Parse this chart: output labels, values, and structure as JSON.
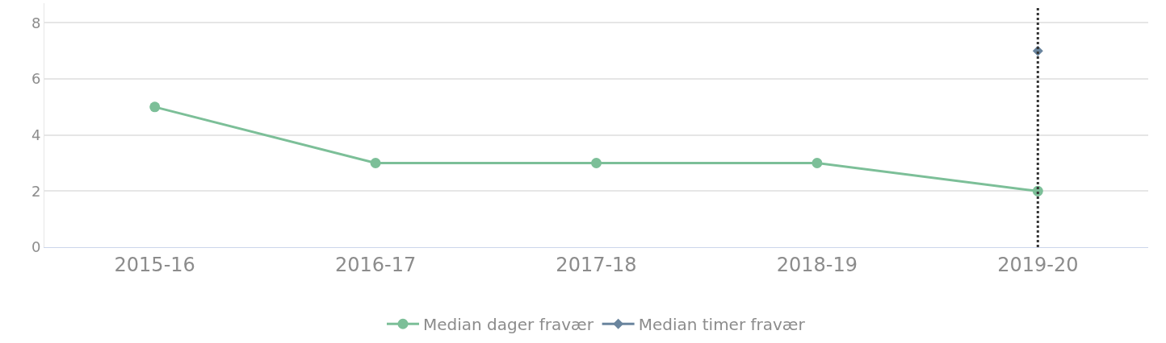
{
  "chart_data": {
    "type": "line",
    "categories": [
      "2015-16",
      "2016-17",
      "2017-18",
      "2018-19",
      "2019-20"
    ],
    "series": [
      {
        "name": "Median dager fravær",
        "color": "#7cbf98",
        "marker": "circle",
        "values": [
          5,
          3,
          3,
          3,
          2
        ]
      },
      {
        "name": "Median timer fravær",
        "color": "#6a859e",
        "marker": "diamond",
        "values": [
          null,
          null,
          null,
          null,
          7
        ]
      }
    ],
    "ylim": [
      0,
      8.7
    ],
    "yticks": [
      0,
      2,
      4,
      6,
      8
    ],
    "grid": "y",
    "legend": "bottom",
    "ref_lines": [
      {
        "axis": "x",
        "value": "2019-20",
        "color": "#333333",
        "line_style": "dotted"
      }
    ]
  }
}
